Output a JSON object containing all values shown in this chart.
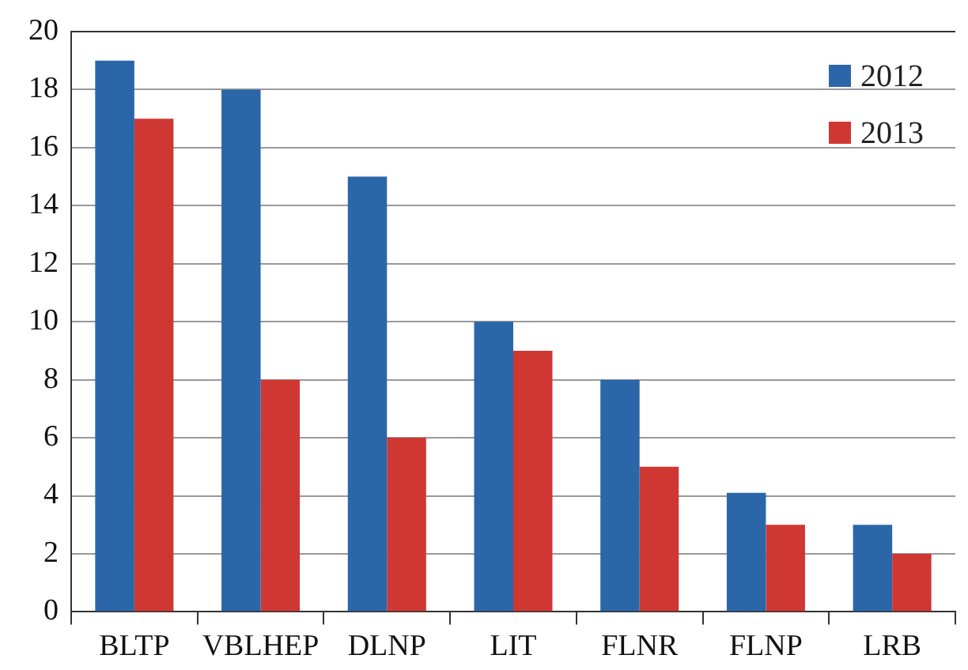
{
  "chart_data": {
    "type": "bar",
    "categories": [
      "BLTP",
      "VBLHEP",
      "DLNP",
      "LIT",
      "FLNR",
      "FLNP",
      "LRB"
    ],
    "series": [
      {
        "name": "2012",
        "color": "#2b66a8",
        "values": [
          19,
          18,
          15,
          10,
          8,
          4.1,
          3
        ]
      },
      {
        "name": "2013",
        "color": "#cf3733",
        "values": [
          17,
          8,
          6,
          9,
          5,
          3,
          2
        ]
      }
    ],
    "ylim": [
      0,
      20
    ],
    "yticks": [
      0,
      2,
      4,
      6,
      8,
      10,
      12,
      14,
      16,
      18,
      20
    ],
    "grid": "y",
    "legend": "top right"
  }
}
